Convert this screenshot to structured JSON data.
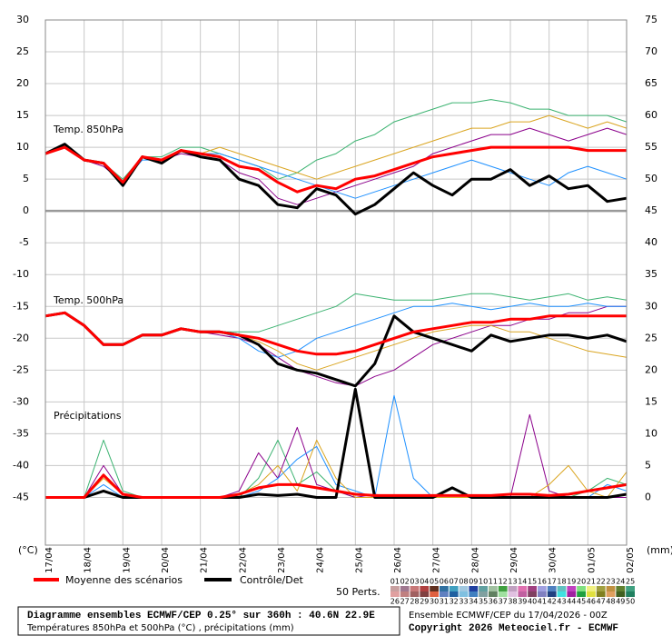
{
  "chart_data": {
    "type": "line",
    "annotations": [
      "Temp. 850hPa",
      "Temp. 500hPa",
      "Précipitations"
    ],
    "y_unit": "(°C)",
    "y2_unit": "(mm)",
    "x": [
      0,
      12,
      24,
      36,
      48,
      60,
      72,
      84,
      96,
      108,
      120,
      132,
      144,
      156,
      168,
      180,
      192,
      204,
      216,
      228,
      240,
      252,
      264,
      276,
      288,
      300,
      312,
      324,
      336,
      348,
      360
    ],
    "xlim": [
      0,
      360
    ],
    "xticks": [
      {
        "value": 0,
        "label": "17/04"
      },
      {
        "value": 24,
        "label": "18/04"
      },
      {
        "value": 48,
        "label": "19/04"
      },
      {
        "value": 72,
        "label": "20/04"
      },
      {
        "value": 96,
        "label": "21/04"
      },
      {
        "value": 120,
        "label": "22/04"
      },
      {
        "value": 144,
        "label": "23/04"
      },
      {
        "value": 168,
        "label": "24/04"
      },
      {
        "value": 192,
        "label": "25/04"
      },
      {
        "value": 216,
        "label": "26/04"
      },
      {
        "value": 240,
        "label": "27/04"
      },
      {
        "value": 264,
        "label": "28/04"
      },
      {
        "value": 288,
        "label": "29/04"
      },
      {
        "value": 312,
        "label": "30/04"
      },
      {
        "value": 336,
        "label": "01/05"
      },
      {
        "value": 360,
        "label": "02/05"
      }
    ],
    "ylim": [
      -52.5,
      30
    ],
    "yticks": [
      -45,
      -40,
      -35,
      -30,
      -25,
      -20,
      -15,
      -10,
      -5,
      0,
      5,
      10,
      15,
      20,
      25,
      30
    ],
    "y2lim": [
      -7.5,
      75
    ],
    "y2ticks": [
      0,
      5,
      10,
      15,
      20,
      25,
      30,
      35,
      40,
      45,
      50,
      55,
      60,
      65,
      70,
      75
    ],
    "hline": 0,
    "grid": true,
    "series": [
      {
        "name": "Moyenne des scénarios",
        "color": "#ff0000",
        "axis": "y",
        "values": [
          9,
          10,
          8,
          7.5,
          4.5,
          8.5,
          8,
          9.5,
          9,
          8.5,
          7,
          6.5,
          4.5,
          3,
          4,
          3.5,
          5,
          5.5,
          6.5,
          7.5,
          8.5,
          9,
          9.5,
          10,
          10,
          10,
          10,
          10,
          9.5,
          9.5,
          9.5
        ]
      },
      {
        "name": "Contrôle/Det",
        "color": "#000000",
        "axis": "y",
        "values": [
          9,
          10.5,
          8,
          7.5,
          4,
          8.5,
          7.5,
          9.5,
          8.5,
          8,
          5,
          4,
          1,
          0.5,
          3.5,
          2.5,
          -0.5,
          1,
          3.5,
          6,
          4,
          2.5,
          5,
          5,
          6.5,
          4,
          5.5,
          3.5,
          4,
          1.5,
          2
        ]
      },
      {
        "color": "#ff0000",
        "axis": "y",
        "values": [
          -16.5,
          -16,
          -18,
          -21,
          -21,
          -19.5,
          -19.5,
          -18.5,
          -19,
          -19,
          -19.5,
          -20,
          -21,
          -22,
          -22.5,
          -22.5,
          -22,
          -21,
          -20,
          -19,
          -18.5,
          -18,
          -17.5,
          -17.5,
          -17,
          -17,
          -16.5,
          -16.5,
          -16.5,
          -16.5,
          -16.5
        ]
      },
      {
        "color": "#000000",
        "axis": "y",
        "values": [
          -16.5,
          -16,
          -18,
          -21,
          -21,
          -19.5,
          -19.5,
          -18.5,
          -19,
          -19,
          -19.5,
          -21,
          -24,
          -25,
          -25.5,
          -26.5,
          -27.5,
          -24,
          -16.5,
          -19,
          -20,
          -21,
          -22,
          -19.5,
          -20.5,
          -20,
          -19.5,
          -19.5,
          -20,
          -19.5,
          -20.5
        ]
      },
      {
        "color": "#ff0000",
        "axis": "y2",
        "values": [
          0,
          0,
          0,
          3.5,
          0.5,
          0,
          0,
          0,
          0,
          0,
          0.5,
          1.5,
          2,
          2,
          1.5,
          1,
          0.5,
          0.3,
          0.3,
          0.3,
          0.3,
          0.3,
          0.3,
          0.3,
          0.5,
          0.5,
          0.3,
          0.5,
          1,
          1.5,
          2
        ]
      },
      {
        "color": "#000000",
        "axis": "y2",
        "values": [
          0,
          0,
          0,
          1,
          0,
          0,
          0,
          0,
          0,
          0,
          0,
          0.5,
          0.3,
          0.5,
          0,
          0,
          17,
          0,
          0,
          0,
          0,
          1.5,
          0,
          0,
          0,
          0,
          0,
          0,
          0,
          0,
          0.5
        ]
      }
    ],
    "perturbations": [
      {
        "color": "#3cb371",
        "axis": "y",
        "values": [
          9,
          10,
          8,
          7.5,
          5,
          8.5,
          8.5,
          10,
          10,
          9,
          8,
          7,
          5,
          6,
          8,
          9,
          11,
          12,
          14,
          15,
          16,
          17,
          17,
          17.5,
          17,
          16,
          16,
          15,
          15,
          15,
          14
        ]
      },
      {
        "color": "#8b008b",
        "axis": "y",
        "values": [
          9,
          10,
          8,
          7,
          4.5,
          8.5,
          8,
          9,
          8.5,
          8,
          6,
          5,
          2,
          1,
          2,
          3,
          4,
          5,
          6,
          7,
          9,
          10,
          11,
          12,
          12,
          13,
          12,
          11,
          12,
          13,
          12
        ]
      },
      {
        "color": "#1e90ff",
        "axis": "y",
        "values": [
          9,
          10,
          8,
          7.5,
          4.5,
          8,
          8,
          9.5,
          9,
          9,
          8,
          7,
          6,
          5,
          4,
          3,
          2,
          3,
          4,
          5,
          6,
          7,
          8,
          7,
          6,
          5,
          4,
          6,
          7,
          6,
          5
        ]
      },
      {
        "color": "#daa520",
        "axis": "y",
        "values": [
          9,
          10,
          8,
          7.5,
          4.5,
          8.5,
          8,
          9.5,
          9,
          10,
          9,
          8,
          7,
          6,
          5,
          6,
          7,
          8,
          9,
          10,
          11,
          12,
          13,
          13,
          14,
          14,
          15,
          14,
          13,
          14,
          13
        ]
      },
      {
        "color": "#3cb371",
        "axis": "y",
        "values": [
          -16.5,
          -16,
          -18,
          -21,
          -21,
          -19.5,
          -19.5,
          -18.5,
          -19,
          -19,
          -19,
          -19,
          -18,
          -17,
          -16,
          -15,
          -13,
          -13.5,
          -14,
          -14,
          -14,
          -13.5,
          -13,
          -13,
          -13.5,
          -14,
          -13.5,
          -13,
          -14,
          -13.5,
          -14
        ]
      },
      {
        "color": "#8b008b",
        "axis": "y",
        "values": [
          -16.5,
          -16,
          -18,
          -21,
          -21,
          -19.5,
          -19.5,
          -18.5,
          -19,
          -19.5,
          -20,
          -21,
          -23,
          -25,
          -26,
          -27,
          -27.5,
          -26,
          -25,
          -23,
          -21,
          -20,
          -19,
          -18,
          -18,
          -17,
          -17,
          -16,
          -16,
          -15,
          -15
        ]
      },
      {
        "color": "#1e90ff",
        "axis": "y",
        "values": [
          -16.5,
          -16,
          -18,
          -21,
          -21,
          -19.5,
          -19.5,
          -18.5,
          -19,
          -19,
          -20,
          -22,
          -23,
          -22,
          -20,
          -19,
          -18,
          -17,
          -16,
          -15,
          -15,
          -14.5,
          -15,
          -15.5,
          -15,
          -14.5,
          -15,
          -15,
          -14.5,
          -15,
          -15
        ]
      },
      {
        "color": "#daa520",
        "axis": "y",
        "values": [
          -16.5,
          -16,
          -18,
          -21,
          -21,
          -19.5,
          -19.5,
          -18.5,
          -19,
          -19,
          -19.5,
          -20.5,
          -22,
          -24,
          -25,
          -24,
          -23,
          -22,
          -21,
          -20,
          -19,
          -18.5,
          -18,
          -18,
          -19,
          -19,
          -20,
          -21,
          -22,
          -22.5,
          -23
        ]
      },
      {
        "color": "#3cb371",
        "axis": "y2",
        "values": [
          0,
          0,
          0,
          9,
          1,
          0,
          0,
          0,
          0,
          0,
          0,
          3,
          9,
          2,
          4,
          1,
          0,
          0,
          0,
          0,
          0,
          0,
          0,
          0,
          0,
          0,
          0,
          0,
          1,
          3,
          2
        ]
      },
      {
        "color": "#8b008b",
        "axis": "y2",
        "values": [
          0,
          0,
          0,
          5,
          0.5,
          0,
          0,
          0,
          0,
          0,
          1,
          7,
          3,
          11,
          2,
          1,
          0,
          0.5,
          0,
          0,
          0,
          0,
          0,
          0,
          0,
          13,
          1,
          0,
          0,
          0,
          0
        ]
      },
      {
        "color": "#1e90ff",
        "axis": "y2",
        "values": [
          0,
          0,
          0,
          2,
          0,
          0,
          0,
          0,
          0,
          0,
          0,
          1,
          3,
          6,
          8,
          2,
          1,
          0,
          16,
          3,
          0,
          0,
          0,
          0,
          0,
          0,
          0,
          0,
          0,
          2,
          1
        ]
      },
      {
        "color": "#daa520",
        "axis": "y2",
        "values": [
          0,
          0,
          0,
          3,
          0.5,
          0,
          0,
          0,
          0,
          0,
          0.5,
          2,
          5,
          1,
          9,
          3,
          0,
          0,
          0,
          0,
          0,
          0,
          0,
          0,
          0,
          0,
          2,
          5,
          1,
          0,
          4
        ]
      }
    ],
    "perturbation_title": "50 Perts.",
    "perturbation_labels": [
      "01",
      "02",
      "03",
      "04",
      "05",
      "06",
      "07",
      "08",
      "09",
      "10",
      "11",
      "12",
      "13",
      "14",
      "15",
      "16",
      "17",
      "18",
      "19",
      "20",
      "21",
      "22",
      "23",
      "24",
      "25",
      "26",
      "27",
      "28",
      "29",
      "30",
      "31",
      "32",
      "33",
      "34",
      "35",
      "36",
      "37",
      "38",
      "39",
      "40",
      "41",
      "42",
      "43",
      "44",
      "45",
      "46",
      "47",
      "48",
      "49",
      "50"
    ],
    "perturbation_colors": [
      "#c8a0a0",
      "#a07890",
      "#c87878",
      "#b04040",
      "#603020",
      "#3070a0",
      "#40a0c0",
      "#a0c8e0",
      "#2040a0",
      "#60a0a0",
      "#a0c0a0",
      "#40a040",
      "#c0a0c0",
      "#e070b0",
      "#a04080",
      "#a0a0e0",
      "#5080c0",
      "#60c0c0",
      "#c040c0",
      "#80e080",
      "#f0f080",
      "#a0a040",
      "#c09040",
      "#608030",
      "#40a080",
      "#e0a0a0",
      "#c08080",
      "#a06060",
      "#804040",
      "#e06040",
      "#6080c0",
      "#2060a0",
      "#80c0e0",
      "#4080c0",
      "#80a0a0",
      "#608060",
      "#a0e0a0",
      "#e0c0e0",
      "#c060a0",
      "#804060",
      "#8080c0",
      "#204080",
      "#40e0e0",
      "#a020a0",
      "#20a040",
      "#e0e040",
      "#808020",
      "#e0a060",
      "#406020",
      "#208060"
    ],
    "footer": {
      "title": "Diagramme ensembles ECMWF/CEP 0.25° sur 360h : 40.6N 22.9E",
      "subtitle": "Températures 850hPa et 500hPa (°C) , précipitations (mm)",
      "run": "Ensemble ECMWF/CEP du 17/04/2026 - 00Z",
      "copyright": "Copyright 2026 Meteociel.fr - ECMWF"
    }
  }
}
